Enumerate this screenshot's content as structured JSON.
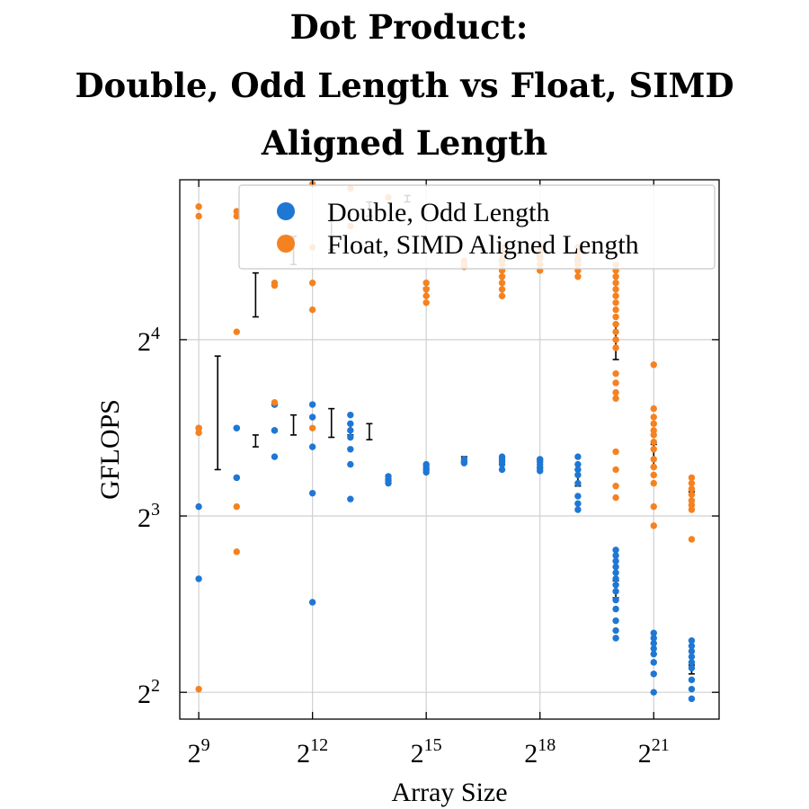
{
  "chart_data": {
    "type": "scatter",
    "title": [
      "Dot Product:",
      "Double, Odd Length vs Float, SIMD",
      "Aligned Length"
    ],
    "xlabel": "Array Size",
    "ylabel": "GFLOPS",
    "x_scale": "log2",
    "y_scale": "log2",
    "xlim": [
      362,
      6930000
    ],
    "ylim": [
      3.6,
      30
    ],
    "x_ticks": [
      {
        "value": 512,
        "base": "2",
        "exp": "9"
      },
      {
        "value": 4096,
        "base": "2",
        "exp": "12"
      },
      {
        "value": 32768,
        "base": "2",
        "exp": "15"
      },
      {
        "value": 262144,
        "base": "2",
        "exp": "18"
      },
      {
        "value": 2097152,
        "base": "2",
        "exp": "21"
      }
    ],
    "y_ticks": [
      {
        "value": 4,
        "base": "2",
        "exp": "2"
      },
      {
        "value": 8,
        "base": "2",
        "exp": "3"
      },
      {
        "value": 16,
        "base": "2",
        "exp": "4"
      }
    ],
    "grid": true,
    "legend_position": "top-right",
    "series": [
      {
        "name": "Double, Odd Length",
        "color": "#1f77d4",
        "points": [
          [
            512,
            11.3
          ],
          [
            512,
            8.3
          ],
          [
            512,
            6.25
          ],
          [
            1024,
            11.3
          ],
          [
            1024,
            11.3
          ],
          [
            1024,
            9.3
          ],
          [
            1024,
            9.3
          ],
          [
            2048,
            12.4
          ],
          [
            2048,
            12.4
          ],
          [
            2048,
            11.2
          ],
          [
            2048,
            11.2
          ],
          [
            2048,
            10.1
          ],
          [
            4096,
            12.4
          ],
          [
            4096,
            11.8
          ],
          [
            4096,
            10.5
          ],
          [
            4096,
            8.75
          ],
          [
            4096,
            5.7
          ],
          [
            8192,
            11.9
          ],
          [
            8192,
            11.5
          ],
          [
            8192,
            11.2
          ],
          [
            8192,
            10.9
          ],
          [
            8192,
            10.4
          ],
          [
            8192,
            9.8
          ],
          [
            8192,
            8.55
          ],
          [
            16384,
            9.35
          ],
          [
            16384,
            9.2
          ],
          [
            16384,
            9.1
          ],
          [
            32768,
            9.8
          ],
          [
            32768,
            9.7
          ],
          [
            32768,
            9.6
          ],
          [
            32768,
            9.5
          ],
          [
            65536,
            10.0
          ],
          [
            65536,
            9.9
          ],
          [
            65536,
            9.85
          ],
          [
            131072,
            10.1
          ],
          [
            131072,
            10.0
          ],
          [
            131072,
            9.9
          ],
          [
            131072,
            9.8
          ],
          [
            131072,
            9.6
          ],
          [
            262144,
            10.0
          ],
          [
            262144,
            9.9
          ],
          [
            262144,
            9.8
          ],
          [
            262144,
            9.65
          ],
          [
            262144,
            9.55
          ],
          [
            524288,
            10.1
          ],
          [
            524288,
            9.8
          ],
          [
            524288,
            9.6
          ],
          [
            524288,
            9.4
          ],
          [
            524288,
            9.1
          ],
          [
            524288,
            8.65
          ],
          [
            524288,
            8.4
          ],
          [
            524288,
            8.2
          ],
          [
            1048576,
            7.0
          ],
          [
            1048576,
            6.85
          ],
          [
            1048576,
            6.7
          ],
          [
            1048576,
            6.55
          ],
          [
            1048576,
            6.4
          ],
          [
            1048576,
            6.25
          ],
          [
            1048576,
            6.1
          ],
          [
            1048576,
            5.95
          ],
          [
            1048576,
            5.75
          ],
          [
            1048576,
            5.55
          ],
          [
            1048576,
            5.3
          ],
          [
            1048576,
            5.1
          ],
          [
            1048576,
            4.95
          ],
          [
            2097152,
            5.05
          ],
          [
            2097152,
            4.95
          ],
          [
            2097152,
            4.85
          ],
          [
            2097152,
            4.75
          ],
          [
            2097152,
            4.65
          ],
          [
            2097152,
            4.5
          ],
          [
            2097152,
            4.3
          ],
          [
            2097152,
            4.0
          ],
          [
            4194304,
            4.9
          ],
          [
            4194304,
            4.8
          ],
          [
            4194304,
            4.7
          ],
          [
            4194304,
            4.6
          ],
          [
            4194304,
            4.5
          ],
          [
            4194304,
            4.4
          ],
          [
            4194304,
            4.2
          ],
          [
            4194304,
            4.05
          ],
          [
            4194304,
            3.9
          ]
        ]
      },
      {
        "name": "Float, SIMD Aligned Length",
        "color": "#f58220",
        "points": [
          [
            512,
            27.0
          ],
          [
            512,
            26.0
          ],
          [
            512,
            11.3
          ],
          [
            512,
            11.1
          ],
          [
            512,
            4.05
          ],
          [
            1024,
            26.5
          ],
          [
            1024,
            26.0
          ],
          [
            1024,
            16.5
          ],
          [
            1024,
            8.3
          ],
          [
            1024,
            6.95
          ],
          [
            2048,
            20.0
          ],
          [
            2048,
            19.8
          ],
          [
            2048,
            12.5
          ],
          [
            4096,
            29.5
          ],
          [
            4096,
            23.0
          ],
          [
            4096,
            20.0
          ],
          [
            4096,
            18.0
          ],
          [
            4096,
            11.3
          ],
          [
            8192,
            29.0
          ],
          [
            8192,
            25.0
          ],
          [
            16384,
            28.0
          ],
          [
            32768,
            20.0
          ],
          [
            32768,
            19.5
          ],
          [
            32768,
            19.0
          ],
          [
            32768,
            18.5
          ],
          [
            65536,
            21.8
          ],
          [
            65536,
            21.5
          ],
          [
            65536,
            21.3
          ],
          [
            131072,
            23.0
          ],
          [
            131072,
            22.5
          ],
          [
            131072,
            22.0
          ],
          [
            131072,
            21.5
          ],
          [
            131072,
            21.0
          ],
          [
            131072,
            20.5
          ],
          [
            131072,
            20.0
          ],
          [
            131072,
            19.5
          ],
          [
            131072,
            19.0
          ],
          [
            262144,
            23.0
          ],
          [
            262144,
            22.5
          ],
          [
            262144,
            22.0
          ],
          [
            262144,
            21.5
          ],
          [
            262144,
            21.0
          ],
          [
            524288,
            23.0
          ],
          [
            524288,
            22.5
          ],
          [
            524288,
            22.0
          ],
          [
            524288,
            21.5
          ],
          [
            524288,
            21.0
          ],
          [
            524288,
            20.5
          ],
          [
            1048576,
            21.5
          ],
          [
            1048576,
            21.0
          ],
          [
            1048576,
            20.5
          ],
          [
            1048576,
            20.0
          ],
          [
            1048576,
            19.5
          ],
          [
            1048576,
            19.0
          ],
          [
            1048576,
            18.5
          ],
          [
            1048576,
            18.0
          ],
          [
            1048576,
            17.5
          ],
          [
            1048576,
            17.0
          ],
          [
            1048576,
            16.5
          ],
          [
            1048576,
            16.0
          ],
          [
            1048576,
            15.5
          ],
          [
            1048576,
            14.0
          ],
          [
            1048576,
            13.5
          ],
          [
            1048576,
            13.0
          ],
          [
            1048576,
            12.7
          ],
          [
            1048576,
            10.3
          ],
          [
            1048576,
            9.6
          ],
          [
            1048576,
            9.0
          ],
          [
            1048576,
            8.6
          ],
          [
            2097152,
            14.5
          ],
          [
            2097152,
            12.2
          ],
          [
            2097152,
            11.8
          ],
          [
            2097152,
            11.5
          ],
          [
            2097152,
            11.2
          ],
          [
            2097152,
            11.0
          ],
          [
            2097152,
            10.7
          ],
          [
            2097152,
            10.4
          ],
          [
            2097152,
            10.0
          ],
          [
            2097152,
            9.7
          ],
          [
            2097152,
            9.4
          ],
          [
            2097152,
            9.1
          ],
          [
            2097152,
            8.3
          ],
          [
            2097152,
            7.7
          ],
          [
            4194304,
            9.3
          ],
          [
            4194304,
            9.1
          ],
          [
            4194304,
            8.9
          ],
          [
            4194304,
            8.7
          ],
          [
            4194304,
            8.5
          ],
          [
            4194304,
            8.35
          ],
          [
            4194304,
            8.2
          ],
          [
            4194304,
            7.3
          ]
        ]
      }
    ],
    "error_bars": [
      {
        "x": 724,
        "low": 9.6,
        "high": 15.0
      },
      {
        "x": 1448,
        "low": 10.5,
        "high": 11.0
      },
      {
        "x": 2896,
        "low": 11.0,
        "high": 11.9
      },
      {
        "x": 5792,
        "low": 10.9,
        "high": 12.2
      },
      {
        "x": 11585,
        "low": 10.8,
        "high": 11.5
      },
      {
        "x": 1448,
        "low": 17.5,
        "high": 20.8
      },
      {
        "x": 2896,
        "low": 21.5,
        "high": 24.0
      },
      {
        "x": 5792,
        "low": 22.8,
        "high": 25.5
      },
      {
        "x": 11585,
        "low": 26.0,
        "high": 27.5
      },
      {
        "x": 23170,
        "low": 27.5,
        "high": 28.2
      },
      {
        "x": 32768,
        "low": 19.0,
        "high": 19.6
      },
      {
        "x": 65536,
        "low": 21.2,
        "high": 21.8
      },
      {
        "x": 131072,
        "low": 9.8,
        "high": 10.1
      },
      {
        "x": 262144,
        "low": 21.6,
        "high": 22.2
      },
      {
        "x": 262144,
        "low": 9.7,
        "high": 10.0
      },
      {
        "x": 131072,
        "low": 21.0,
        "high": 21.8
      },
      {
        "x": 65536,
        "low": 9.9,
        "high": 10.1
      },
      {
        "x": 32768,
        "low": 9.6,
        "high": 9.8
      },
      {
        "x": 524288,
        "low": 21.4,
        "high": 21.8
      },
      {
        "x": 524288,
        "low": 9.0,
        "high": 9.6
      },
      {
        "x": 1048576,
        "low": 14.8,
        "high": 17.0
      },
      {
        "x": 1048576,
        "low": 5.8,
        "high": 6.2
      },
      {
        "x": 2097152,
        "low": 9.7,
        "high": 10.6
      },
      {
        "x": 2097152,
        "low": 4.65,
        "high": 4.85
      },
      {
        "x": 4194304,
        "low": 8.5,
        "high": 8.8
      },
      {
        "x": 4194304,
        "low": 4.3,
        "high": 4.45
      },
      {
        "x": 16384,
        "low": 9.15,
        "high": 9.25
      },
      {
        "x": 8192,
        "low": 11.0,
        "high": 11.5
      }
    ]
  }
}
